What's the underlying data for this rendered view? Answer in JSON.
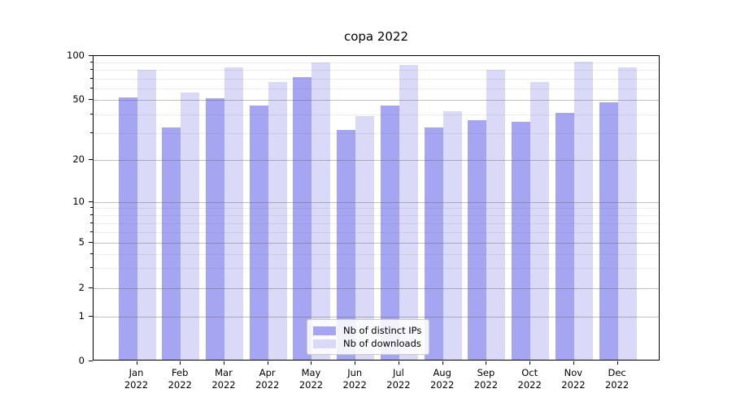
{
  "title": "copa 2022",
  "legend": {
    "items": [
      {
        "label": "Nb of distinct IPs",
        "color": "#a5a5f2"
      },
      {
        "label": "Nb of downloads",
        "color": "#dadaf8"
      }
    ]
  },
  "axis": {
    "y_major_ticks": [
      {
        "value": 0,
        "label": "0"
      },
      {
        "value": 1,
        "label": "1"
      },
      {
        "value": 2,
        "label": "2"
      },
      {
        "value": 5,
        "label": "5"
      },
      {
        "value": 10,
        "label": "10"
      },
      {
        "value": 20,
        "label": "20"
      },
      {
        "value": 50,
        "label": "50"
      },
      {
        "value": 100,
        "label": "100"
      }
    ],
    "y_minor_tick_values": [
      3,
      4,
      6,
      7,
      8,
      9,
      30,
      40,
      60,
      70,
      80,
      90
    ],
    "x_ticks": [
      {
        "month": "Jan",
        "year": "2022"
      },
      {
        "month": "Feb",
        "year": "2022"
      },
      {
        "month": "Mar",
        "year": "2022"
      },
      {
        "month": "Apr",
        "year": "2022"
      },
      {
        "month": "May",
        "year": "2022"
      },
      {
        "month": "Jun",
        "year": "2022"
      },
      {
        "month": "Jul",
        "year": "2022"
      },
      {
        "month": "Aug",
        "year": "2022"
      },
      {
        "month": "Sep",
        "year": "2022"
      },
      {
        "month": "Oct",
        "year": "2022"
      },
      {
        "month": "Nov",
        "year": "2022"
      },
      {
        "month": "Dec",
        "year": "2022"
      }
    ]
  },
  "chart_data": {
    "type": "bar",
    "title": "copa 2022",
    "categories": [
      "Jan 2022",
      "Feb 2022",
      "Mar 2022",
      "Apr 2022",
      "May 2022",
      "Jun 2022",
      "Jul 2022",
      "Aug 2022",
      "Sep 2022",
      "Oct 2022",
      "Nov 2022",
      "Dec 2022"
    ],
    "series": [
      {
        "name": "Nb of distinct IPs",
        "color": "#a5a5f2",
        "values": [
          51,
          32,
          50,
          45,
          70,
          31,
          45,
          32,
          36,
          35,
          40,
          47
        ]
      },
      {
        "name": "Nb of downloads",
        "color": "#dadaf8",
        "values": [
          78,
          55,
          82,
          65,
          88,
          38,
          85,
          41,
          78,
          65,
          89,
          82
        ]
      }
    ],
    "xlabel": "",
    "ylabel": "",
    "yscale": "log-with-zero",
    "ylim": [
      0,
      100
    ],
    "ytick_values": [
      0,
      1,
      2,
      5,
      10,
      20,
      50,
      100
    ],
    "grid": true,
    "grid_minor": true,
    "legend_position": "lower center"
  }
}
